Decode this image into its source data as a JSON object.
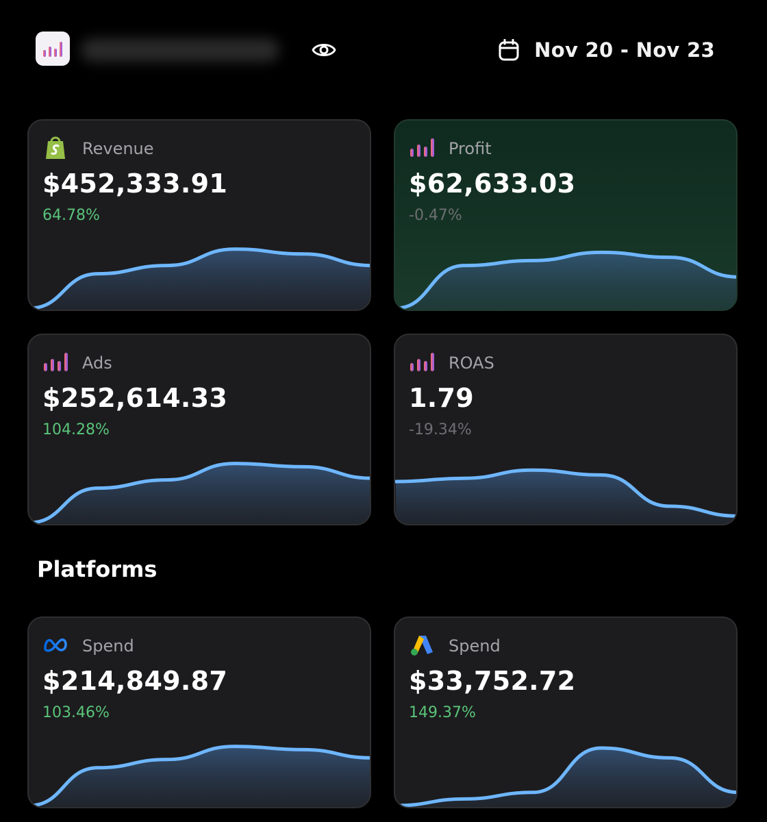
{
  "header": {
    "date_range": "Nov 20 - Nov 23"
  },
  "cards": [
    {
      "label": "Revenue",
      "value": "$452,333.91",
      "change": "64.78%",
      "trend": "positive",
      "icon": "shopify-icon"
    },
    {
      "label": "Profit",
      "value": "$62,633.03",
      "change": "-0.47%",
      "trend": "negative",
      "icon": "bars-icon"
    },
    {
      "label": "Ads",
      "value": "$252,614.33",
      "change": "104.28%",
      "trend": "positive",
      "icon": "bars-icon"
    },
    {
      "label": "ROAS",
      "value": "1.79",
      "change": "-19.34%",
      "trend": "negative",
      "icon": "bars-icon"
    }
  ],
  "platforms": {
    "title": "Platforms",
    "cards": [
      {
        "label": "Spend",
        "value": "$214,849.87",
        "change": "103.46%",
        "trend": "positive",
        "icon": "meta-icon"
      },
      {
        "label": "Spend",
        "value": "$33,752.72",
        "change": "149.37%",
        "trend": "positive",
        "icon": "google-ads-icon"
      }
    ]
  },
  "chart_data": [
    {
      "type": "area",
      "series": [
        {
          "values": [
            0,
            2.1,
            2.6,
            3.6,
            3.3,
            2.6
          ]
        }
      ]
    },
    {
      "type": "area",
      "series": [
        {
          "values": [
            0,
            2.6,
            2.9,
            3.4,
            3.1,
            1.9
          ]
        }
      ]
    },
    {
      "type": "area",
      "series": [
        {
          "values": [
            0,
            2.1,
            2.6,
            3.6,
            3.4,
            2.7
          ]
        }
      ]
    },
    {
      "type": "area",
      "series": [
        {
          "values": [
            2.5,
            2.7,
            3.2,
            2.9,
            1.0,
            0.4
          ]
        }
      ]
    },
    {
      "type": "area",
      "series": [
        {
          "values": [
            0,
            2.3,
            2.8,
            3.6,
            3.4,
            2.9
          ]
        }
      ]
    },
    {
      "type": "area",
      "series": [
        {
          "values": [
            0,
            0.4,
            0.8,
            3.5,
            2.9,
            0.8
          ]
        }
      ]
    }
  ],
  "colors": {
    "positive": "#5ac47a",
    "negative": "#6e6e73",
    "line": "#6eb6ff"
  }
}
